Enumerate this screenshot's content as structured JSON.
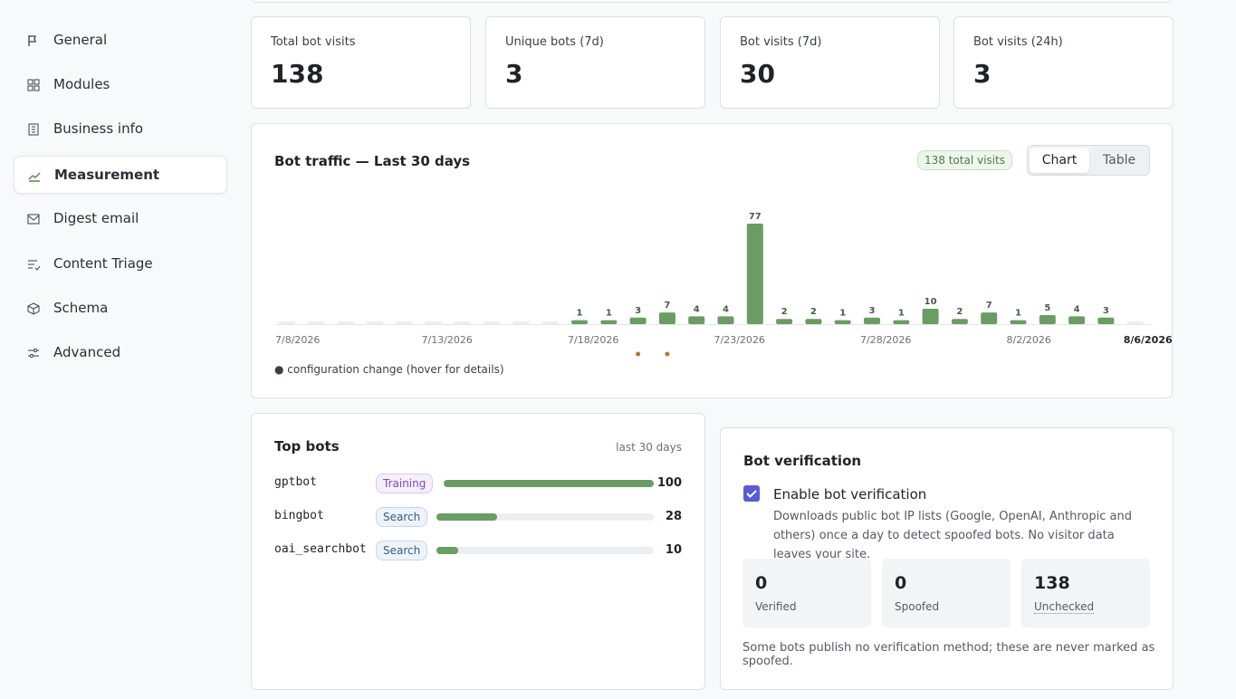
{
  "sidebar": {
    "items": [
      "General",
      "Modules",
      "Business info",
      "Measurement",
      "Digest email",
      "Content Triage",
      "Schema",
      "Advanced"
    ],
    "active": 3
  },
  "stats": [
    {
      "label": "Total bot visits",
      "value": 138
    },
    {
      "label": "Unique bots (7d)",
      "value": 3
    },
    {
      "label": "Bot visits (7d)",
      "value": 30
    },
    {
      "label": "Bot visits (24h)",
      "value": 3
    }
  ],
  "chart_data": {
    "type": "bar",
    "title": "Bot traffic — Last 30 days",
    "badge": "138 total visits",
    "toggle": [
      "Chart",
      "Table"
    ],
    "categories": [
      "7/8/2026",
      null,
      null,
      null,
      null,
      "7/13/2026",
      null,
      null,
      null,
      null,
      "7/18/2026",
      null,
      null,
      null,
      null,
      "7/23/2026",
      null,
      null,
      null,
      null,
      "7/28/2026",
      null,
      null,
      null,
      null,
      "8/2/2026",
      null,
      null,
      null,
      "8/6/2026"
    ],
    "values": [
      0,
      0,
      0,
      0,
      0,
      0,
      0,
      0,
      0,
      0,
      1,
      1,
      3,
      7,
      4,
      4,
      77,
      2,
      2,
      1,
      3,
      1,
      10,
      2,
      7,
      1,
      5,
      4,
      3,
      0
    ],
    "ylim": [
      0,
      77
    ],
    "color": "#6a9c63",
    "config_change_index": [
      12,
      13
    ],
    "annotation": "● configuration change (hover for details)"
  },
  "top_bots": {
    "title": "Top bots",
    "period": "last 30 days",
    "xlim": [
      0,
      100
    ],
    "rows": [
      {
        "name": "gptbot",
        "tag": "Training",
        "value": 100
      },
      {
        "name": "bingbot",
        "tag": "Search",
        "value": 28
      },
      {
        "name": "oai_searchbot",
        "tag": "Search",
        "value": 10
      }
    ]
  },
  "verification": {
    "title": "Bot verification",
    "checkbox": "Enable bot verification",
    "description": "Downloads public bot IP lists (Google, OpenAI, Anthropic and others) once a day to detect spoofed bots. No visitor data leaves your site.",
    "stats": [
      {
        "value": 0,
        "label": "Verified"
      },
      {
        "value": 0,
        "label": "Spoofed"
      },
      {
        "value": 138,
        "label": "Unchecked"
      }
    ],
    "note": "Some bots publish no verification method; these are never marked as spoofed."
  }
}
